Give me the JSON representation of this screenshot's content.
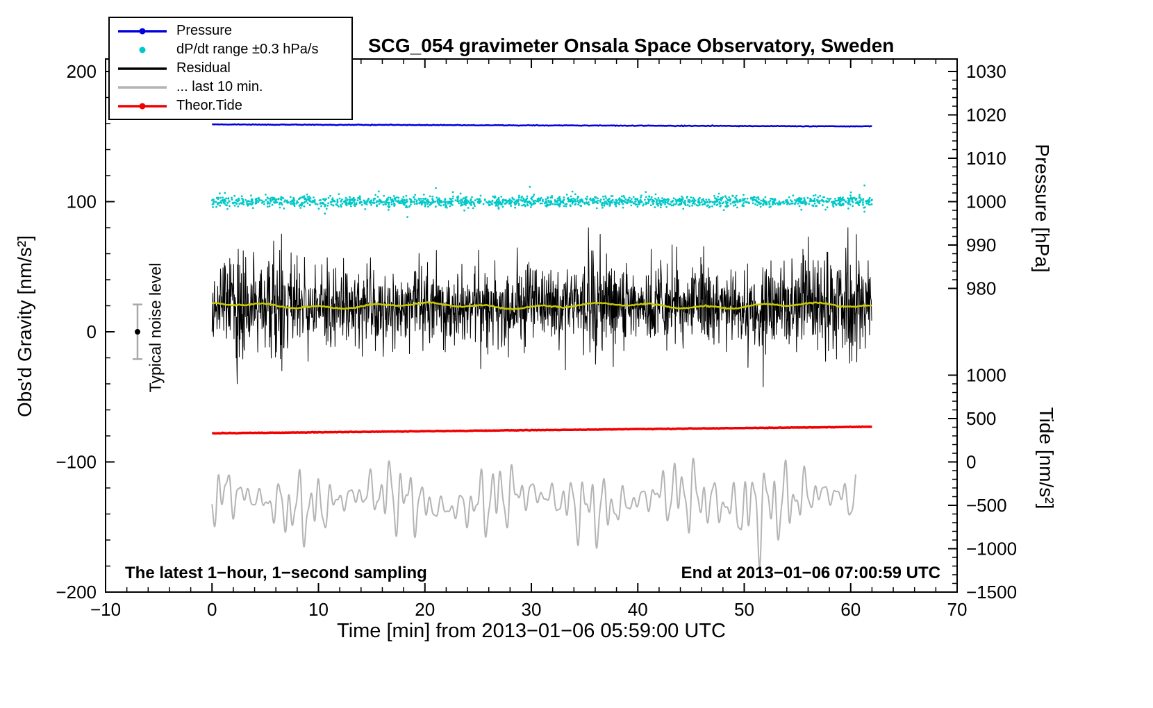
{
  "chart_data": {
    "type": "line",
    "title": "SCG_054 gravimeter Onsala Space Observatory, Sweden",
    "notes": {
      "sampling": "The latest 1−hour, 1−second sampling",
      "end": "End at 2013−01−06 07:00:59 UTC",
      "noise": "Typical noise level"
    },
    "axes": {
      "x": {
        "title": "Time [min] from 2013−01−06 05:59:00 UTC",
        "min": -10,
        "max": 70,
        "minor_step": 2,
        "major": [
          {
            "v": -10,
            "l": "−10"
          },
          {
            "v": 0,
            "l": "0"
          },
          {
            "v": 10,
            "l": "10"
          },
          {
            "v": 20,
            "l": "20"
          },
          {
            "v": 30,
            "l": "30"
          },
          {
            "v": 40,
            "l": "40"
          },
          {
            "v": 50,
            "l": "50"
          },
          {
            "v": 60,
            "l": "60"
          },
          {
            "v": 70,
            "l": "70"
          }
        ]
      },
      "left": {
        "title": "Obs'd Gravity [nm/s²]",
        "min": -200,
        "max": 200,
        "minor_step": 20,
        "major": [
          {
            "v": 200,
            "l": "200"
          },
          {
            "v": 100,
            "l": "100"
          },
          {
            "v": 0,
            "l": "0"
          },
          {
            "v": -100,
            "l": "−100"
          },
          {
            "v": -200,
            "l": "−200"
          }
        ]
      },
      "pressure": {
        "title": "Pressure [hPa]",
        "minor_step": 2,
        "major": [
          {
            "v": 1030,
            "l": "1030"
          },
          {
            "v": 1020,
            "l": "1020"
          },
          {
            "v": 1010,
            "l": "1010"
          },
          {
            "v": 1000,
            "l": "1000"
          },
          {
            "v": 990,
            "l": "990"
          },
          {
            "v": 980,
            "l": "980"
          }
        ]
      },
      "tide": {
        "title": "Tide [nm/s²]",
        "minor_step": 100,
        "major": [
          {
            "v": 1000,
            "l": "1000"
          },
          {
            "v": 500,
            "l": "500"
          },
          {
            "v": 0,
            "l": "0"
          },
          {
            "v": -500,
            "l": "−500"
          },
          {
            "v": -1000,
            "l": "−1000"
          },
          {
            "v": -1500,
            "l": "−1500"
          }
        ]
      }
    },
    "legend": [
      {
        "label": "Pressure",
        "color": "#0000dd",
        "marker": "line-dot"
      },
      {
        "label": "dP/dt range ±0.3 hPa/s",
        "color": "#00c8c8",
        "marker": "dot"
      },
      {
        "label": "Residual",
        "color": "#000000",
        "marker": "line"
      },
      {
        "label": "... last 10 min.",
        "color": "#b4b4b4",
        "marker": "line"
      },
      {
        "label": "Theor.Tide",
        "color": "#f00000",
        "marker": "line-dot"
      }
    ],
    "noise_marker": {
      "t": -7,
      "value": 0,
      "half_range": 21
    },
    "series": [
      {
        "id": "pressure",
        "type": "trend",
        "axis": "pressure",
        "color": "#0000dd",
        "width": 2.5,
        "t0": 0,
        "t1": 62,
        "start": 1017.8,
        "end": 1017.35,
        "jitter": 0.04
      },
      {
        "id": "dpdt",
        "type": "scatter",
        "axis": "left",
        "color": "#00c8c8",
        "t0": 0,
        "t1": 62,
        "mean": 100,
        "sigma": 2.0,
        "n": 1700,
        "outlier_frac": 0.03,
        "outlier_sigma": 5,
        "r": 1.4
      },
      {
        "id": "residual",
        "type": "noisy",
        "axis": "left",
        "color": "#000000",
        "width": 1,
        "t0": 0,
        "t1": 62,
        "step": 0.0333,
        "mean": 20,
        "base_amp": 11,
        "mod_amp": 6,
        "burst_prob": 0.004,
        "burst_amp": 18,
        "clip_lo": -48,
        "clip_hi": 80
      },
      {
        "id": "residual-smooth",
        "type": "smooth",
        "axis": "left",
        "color": "#c8c800",
        "width": 2.5,
        "t0": 0,
        "t1": 62,
        "mean": 20,
        "amp": 1.8
      },
      {
        "id": "theor-tide",
        "type": "trend",
        "axis": "tide",
        "color": "#f00000",
        "width": 3.5,
        "t0": 0,
        "t1": 62,
        "start": 330,
        "end": 405,
        "jitter": 1.5
      },
      {
        "id": "last10min",
        "type": "osc",
        "axis": "left",
        "color": "#b4b4b4",
        "width": 2,
        "t0": 0,
        "t1": 60.5,
        "mean": -130,
        "amps": [
          14,
          10,
          6
        ],
        "periods": [
          0.95,
          1.7,
          0.55
        ],
        "mod_period": 9,
        "burst": {
          "t": 50,
          "amp": 1.9,
          "w": 1.2
        }
      }
    ]
  }
}
